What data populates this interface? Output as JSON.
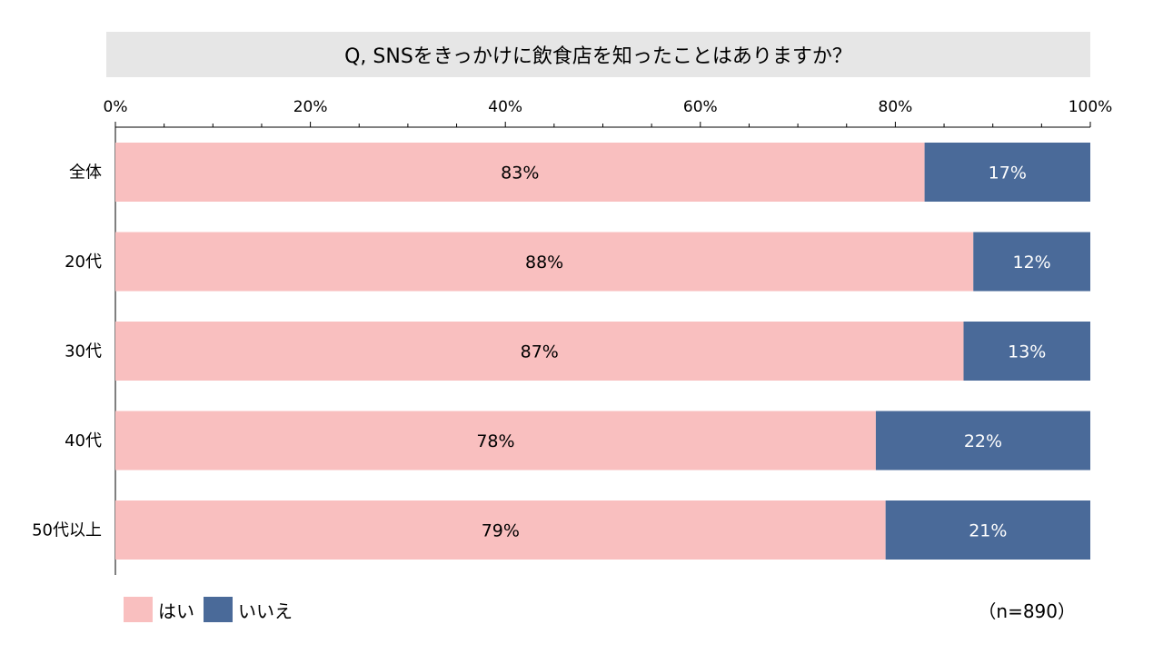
{
  "chart_data": {
    "type": "bar",
    "orientation": "horizontal",
    "stacked": true,
    "title": "Q, SNSをきっかけに飲食店を知ったことはありますか？",
    "categories": [
      "全体",
      "20代",
      "30代",
      "40代",
      "50代以上"
    ],
    "series": [
      {
        "name": "はい",
        "values": [
          83,
          88,
          87,
          78,
          79
        ],
        "color": "#f9bfbf",
        "label_color": "#000000"
      },
      {
        "name": "いいえ",
        "values": [
          17,
          12,
          13,
          22,
          21
        ],
        "color": "#4a6a99",
        "label_color": "#ffffff"
      }
    ],
    "xlim": [
      0,
      100
    ],
    "x_ticks": [
      "0%",
      "20%",
      "40%",
      "60%",
      "80%",
      "100%"
    ],
    "value_suffix": "%",
    "legend_position": "bottom-left",
    "grid": false
  },
  "note": "（n=890）"
}
